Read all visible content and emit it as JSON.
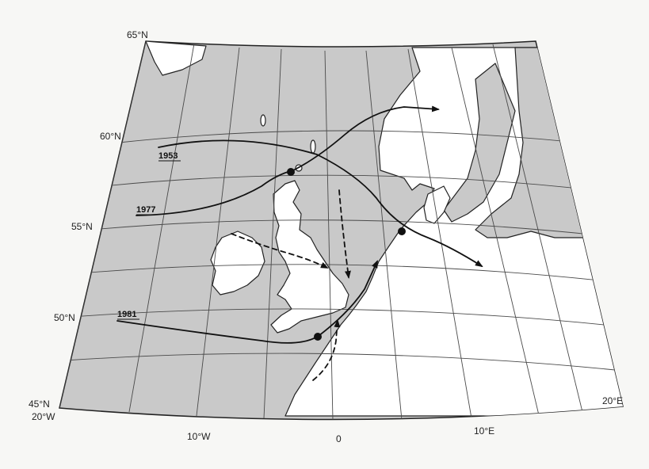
{
  "map": {
    "colors": {
      "sea": "#c9c9c9",
      "land": "#ffffff",
      "grid": "#4a4a4a",
      "outline": "#222222",
      "track": "#111111"
    },
    "latitude_labels": [
      "65°N",
      "60°N",
      "55°N",
      "50°N",
      "45°N"
    ],
    "longitude_labels": [
      "20°W",
      "10°W",
      "0",
      "10°E",
      "20°E"
    ],
    "tracks": [
      {
        "year": "1953",
        "style": "solid"
      },
      {
        "year": "1977",
        "style": "solid"
      },
      {
        "year": "1981",
        "style": "solid"
      }
    ],
    "dashed_tracks": 3,
    "icons": [
      "track-arrow-icon",
      "position-dot-icon"
    ]
  }
}
